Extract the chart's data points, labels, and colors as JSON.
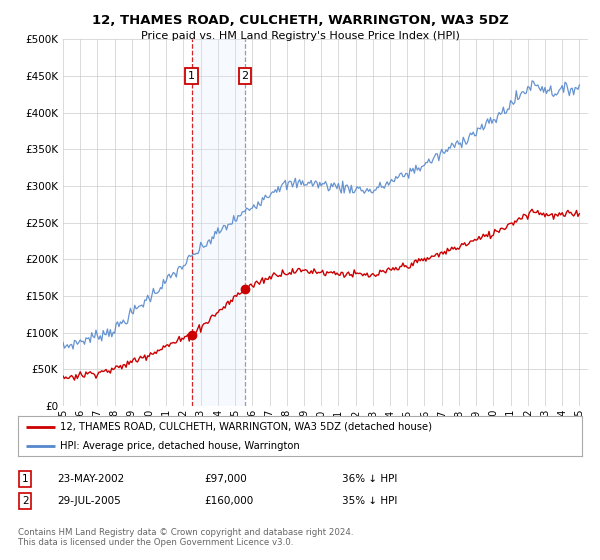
{
  "title": "12, THAMES ROAD, CULCHETH, WARRINGTON, WA3 5DZ",
  "subtitle": "Price paid vs. HM Land Registry's House Price Index (HPI)",
  "legend_line1": "12, THAMES ROAD, CULCHETH, WARRINGTON, WA3 5DZ (detached house)",
  "legend_line2": "HPI: Average price, detached house, Warrington",
  "transaction1_date": "23-MAY-2002",
  "transaction1_price": 97000,
  "transaction1_label": "36% ↓ HPI",
  "transaction2_date": "29-JUL-2005",
  "transaction2_price": 160000,
  "transaction2_label": "35% ↓ HPI",
  "footer": "Contains HM Land Registry data © Crown copyright and database right 2024.\nThis data is licensed under the Open Government Licence v3.0.",
  "ylim": [
    0,
    500000
  ],
  "yticks": [
    0,
    50000,
    100000,
    150000,
    200000,
    250000,
    300000,
    350000,
    400000,
    450000,
    500000
  ],
  "red_color": "#cc0000",
  "blue_color": "#5588cc",
  "vline1_color": "#cc0000",
  "vline2_color": "#8888aa",
  "shading_color": "#ddeeff",
  "grid_color": "#cccccc",
  "background_color": "#ffffff"
}
